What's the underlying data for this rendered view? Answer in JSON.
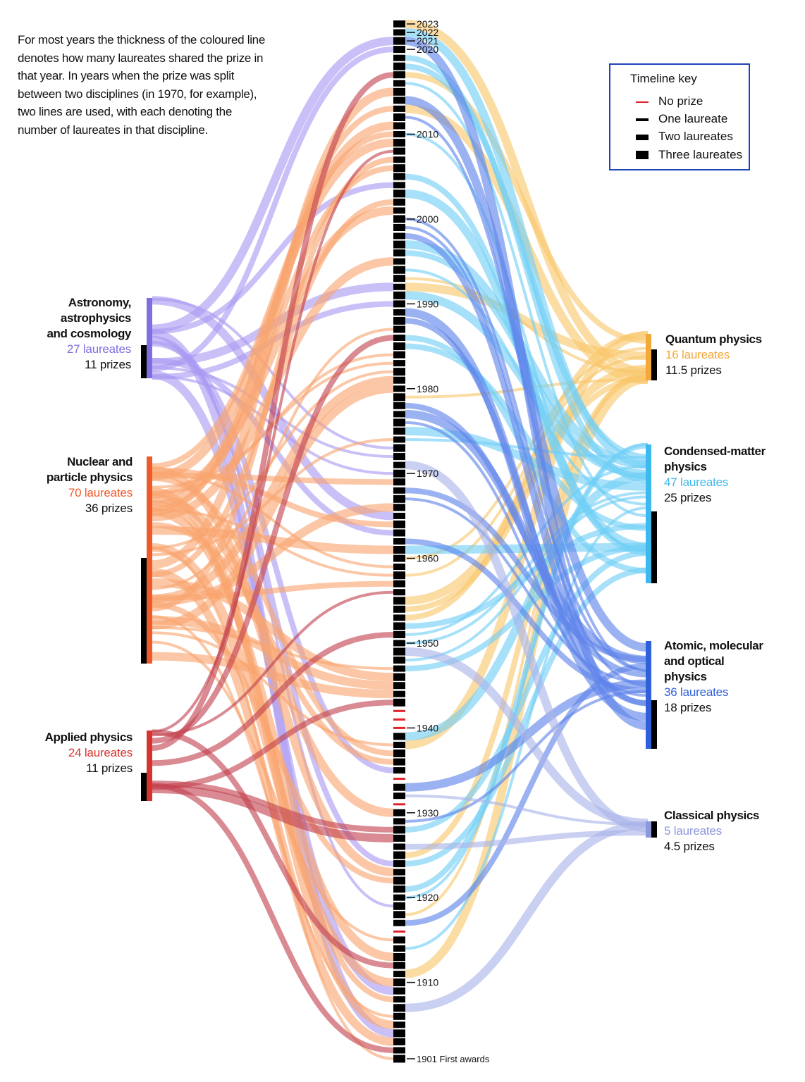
{
  "note": "For most years the thickness of the coloured line\ndenotes how many laureates shared the prize in\nthat year. In years when the prize was split\nbetween two disciplines (in 1970, for example),\ntwo lines are used, with each denoting the\nnumber of laureates in that discipline.",
  "key": {
    "title": "Timeline key",
    "items": [
      {
        "label": "No prize",
        "color": "#e0202a"
      },
      {
        "label": "One laureate",
        "color": "#000000"
      },
      {
        "label": "Two laureates",
        "color": "#000000"
      },
      {
        "label": "Three laureates",
        "color": "#000000"
      }
    ]
  },
  "left_fields": [
    {
      "name": "Astronomy,\nastrophysics\nand cosmology",
      "laureates": "27 laureates",
      "prizes": "11 prizes",
      "color": "#a99af2",
      "label_color": "#7d6fe0"
    },
    {
      "name": "Nuclear and\nparticle physics",
      "laureates": "70 laureates",
      "prizes": "36 prizes",
      "color": "#f8a46f",
      "label_color": "#ef5a2a"
    },
    {
      "name": "Applied physics",
      "laureates": "24 laureates",
      "prizes": "11 prizes",
      "color": "#c2424f",
      "label_color": "#d8342e"
    }
  ],
  "right_fields": [
    {
      "name": "Quantum physics",
      "laureates": "16 laureates",
      "prizes": "11.5 prizes",
      "color": "#f9c66a",
      "label_color": "#f2a93a"
    },
    {
      "name": "Condensed-matter\nphysics",
      "laureates": "47 laureates",
      "prizes": "25 prizes",
      "color": "#71cef5",
      "label_color": "#3db9ee"
    },
    {
      "name": "Atomic, molecular\nand optical\nphysics",
      "laureates": "36 laureates",
      "prizes": "18 prizes",
      "color": "#5d82ea",
      "label_color": "#2f5fd9"
    },
    {
      "name": "Classical physics",
      "laureates": "5 laureates",
      "prizes": "4.5 prizes",
      "color": "#a9b3e8",
      "label_color": "#8c97dc"
    }
  ],
  "timeline": {
    "first_year": 1901,
    "last_year": 2023,
    "no_prize_years": [
      1916,
      1931,
      1934,
      1940,
      1941,
      1942
    ],
    "ticks": [
      {
        "year": 2023,
        "label": "2023"
      },
      {
        "year": 2022,
        "label": "2022"
      },
      {
        "year": 2021,
        "label": "2021"
      },
      {
        "year": 2020,
        "label": "2020"
      },
      {
        "year": 2010,
        "label": "2010"
      },
      {
        "year": 2000,
        "label": "2000"
      },
      {
        "year": 1990,
        "label": "1990"
      },
      {
        "year": 1980,
        "label": "1980"
      },
      {
        "year": 1970,
        "label": "1970"
      },
      {
        "year": 1960,
        "label": "1960"
      },
      {
        "year": 1950,
        "label": "1950"
      },
      {
        "year": 1940,
        "label": "1940"
      },
      {
        "year": 1930,
        "label": "1930"
      },
      {
        "year": 1920,
        "label": "1920"
      },
      {
        "year": 1910,
        "label": "1910"
      },
      {
        "year": 1901,
        "label": "1901 First awards"
      }
    ]
  }
}
